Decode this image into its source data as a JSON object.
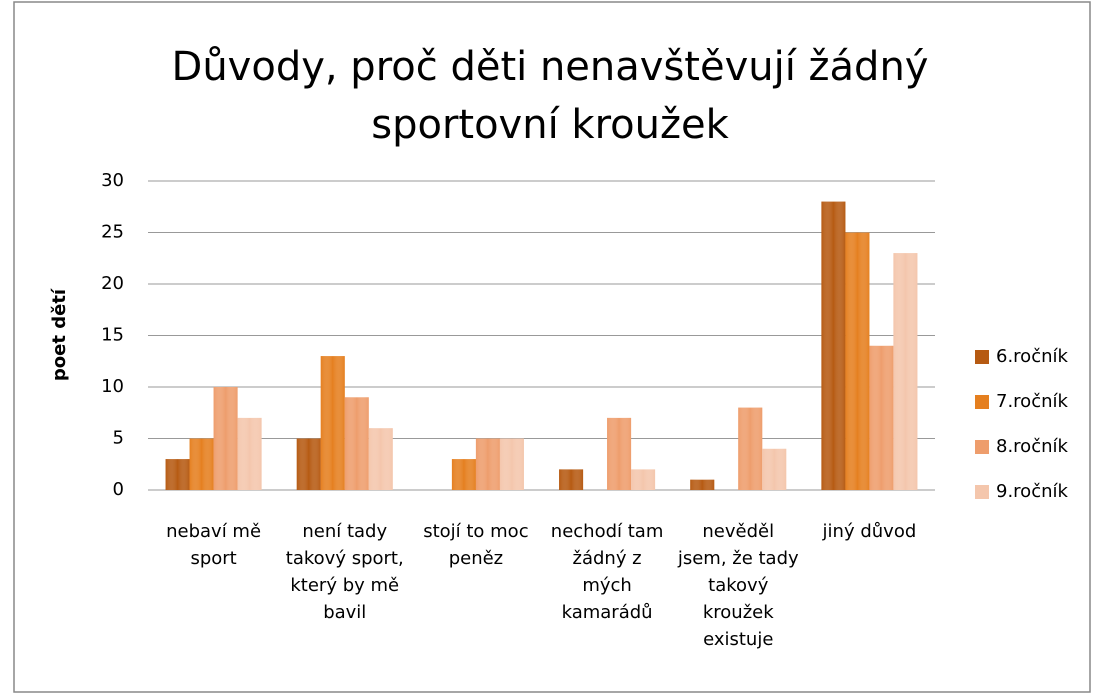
{
  "chart_data": {
    "type": "bar",
    "title": "Důvody, proč děti nenavštěvují žádný sportovní kroužek",
    "ylabel": "poet dětí",
    "categories": [
      "nebaví mě sport",
      "není tady takový sport, který by mě bavil",
      "stojí to moc peněz",
      "nechodí tam žádný z mých kamarádů",
      "nevěděl jsem, že tady takový kroužek existuje",
      "jiný důvod"
    ],
    "series": [
      {
        "name": "6.ročník",
        "color": "#b65a12",
        "values": [
          3,
          5,
          0,
          2,
          1,
          28
        ]
      },
      {
        "name": "7.ročník",
        "color": "#e57f1f",
        "values": [
          5,
          13,
          3,
          0,
          0,
          25
        ]
      },
      {
        "name": "8.ročník",
        "color": "#ee9d6c",
        "values": [
          10,
          9,
          5,
          7,
          8,
          14
        ]
      },
      {
        "name": "9.ročník",
        "color": "#f4c6ac",
        "values": [
          7,
          6,
          5,
          2,
          4,
          23
        ]
      }
    ],
    "ylim": [
      0,
      30
    ],
    "yticks": [
      0,
      5,
      10,
      15,
      20,
      25,
      30
    ],
    "grid": true,
    "legend": "right"
  }
}
